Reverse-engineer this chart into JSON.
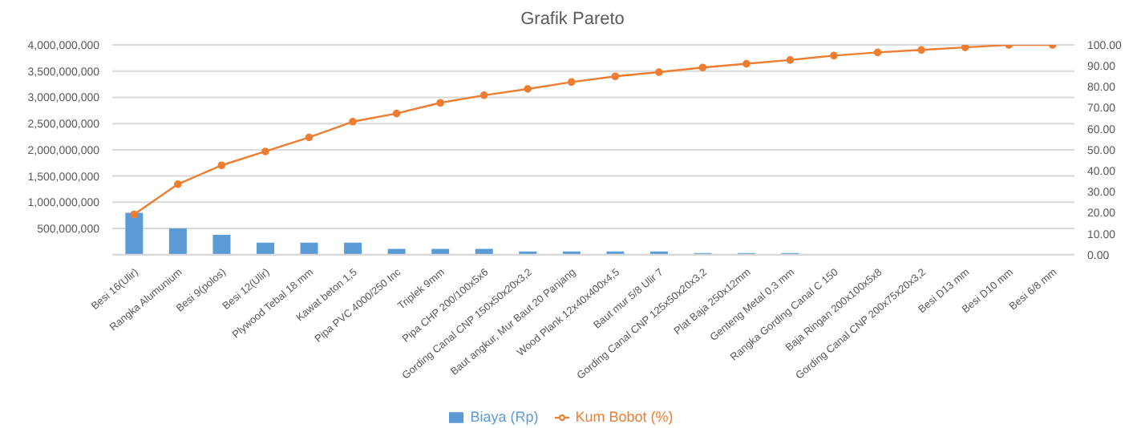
{
  "chart_data": {
    "type": "bar",
    "title": "Grafik Pareto",
    "categories": [
      "Besi 16(Ulir)",
      "Rangka Alumunium",
      "Besi 9(polos)",
      "Besi 12(Ulir)",
      "Plywood Tebal 18 mm",
      "Kawat beton 1,5",
      "Pipa PVC 4000/250 Inc",
      "Triplek 9mm",
      "Pipa CHP 200/100x5x6",
      "Gording Canal CNP 150x50x20x3,2",
      "Baut angkur, Mur Baut 20 Panjang",
      "Wood Plank 12x40x400x4,5",
      "Baut mur 5/8 Ulir 7",
      "Gording Canal CNP 125x50x20x3,2",
      "Plat Baja 250x12mm",
      "Genteng Metal 0,3 mm",
      "Rangka Gording Canal C 150",
      "Baja Ringan 200x100x5x8",
      "Gording Canal CNP 200x75x20x3,2",
      "Besi D13 mm",
      "Besi D10 mm",
      "Besi 6/8 mm"
    ],
    "series": [
      {
        "name": "Biaya (Rp)",
        "color": "#5b9bd5",
        "values": [
          800000000,
          500000000,
          380000000,
          230000000,
          230000000,
          230000000,
          110000000,
          110000000,
          110000000,
          60000000,
          60000000,
          60000000,
          60000000,
          30000000,
          30000000,
          30000000,
          10000000,
          10000000,
          10000000,
          10000000,
          10000000,
          10000000
        ]
      },
      {
        "name": "Kum Bobot (%)",
        "type": "line",
        "axis": "y2",
        "color": "#ed7d31",
        "values": [
          19.2,
          33.6,
          42.6,
          49.2,
          55.9,
          63.4,
          67.3,
          72.4,
          76,
          79,
          82.3,
          85,
          87,
          89.2,
          91,
          92.8,
          94.9,
          96.4,
          97.6,
          98.8,
          100,
          100
        ]
      }
    ],
    "ylim": [
      0,
      4000000000
    ],
    "yticks": [
      {
        "value": 0,
        "label": null
      },
      {
        "value": 500000000,
        "label": "500,000,000"
      },
      {
        "value": 1000000000,
        "label": "1,000,000,000"
      },
      {
        "value": 1500000000,
        "label": "1,500,000,000"
      },
      {
        "value": 2000000000,
        "label": "2,000,000,000"
      },
      {
        "value": 2500000000,
        "label": "2,500,000,000"
      },
      {
        "value": 3000000000,
        "label": "3,000,000,000"
      },
      {
        "value": 3500000000,
        "label": "3,500,000,000"
      },
      {
        "value": 4000000000,
        "label": "4,000,000,000"
      }
    ],
    "y2lim": [
      0,
      100
    ],
    "y2ticks": [
      {
        "value": 0,
        "label": "0.00"
      },
      {
        "value": 10,
        "label": "10.00"
      },
      {
        "value": 20,
        "label": "20.00"
      },
      {
        "value": 30,
        "label": "30.00"
      },
      {
        "value": 40,
        "label": "40.00"
      },
      {
        "value": 50,
        "label": "50.00"
      },
      {
        "value": 60,
        "label": "60.00"
      },
      {
        "value": 70,
        "label": "70.00"
      },
      {
        "value": 80,
        "label": "80.00"
      },
      {
        "value": 90,
        "label": "90.00"
      },
      {
        "value": 100,
        "label": "100.00"
      }
    ],
    "grid": "y",
    "legend": "bottom",
    "marker": "circle"
  }
}
